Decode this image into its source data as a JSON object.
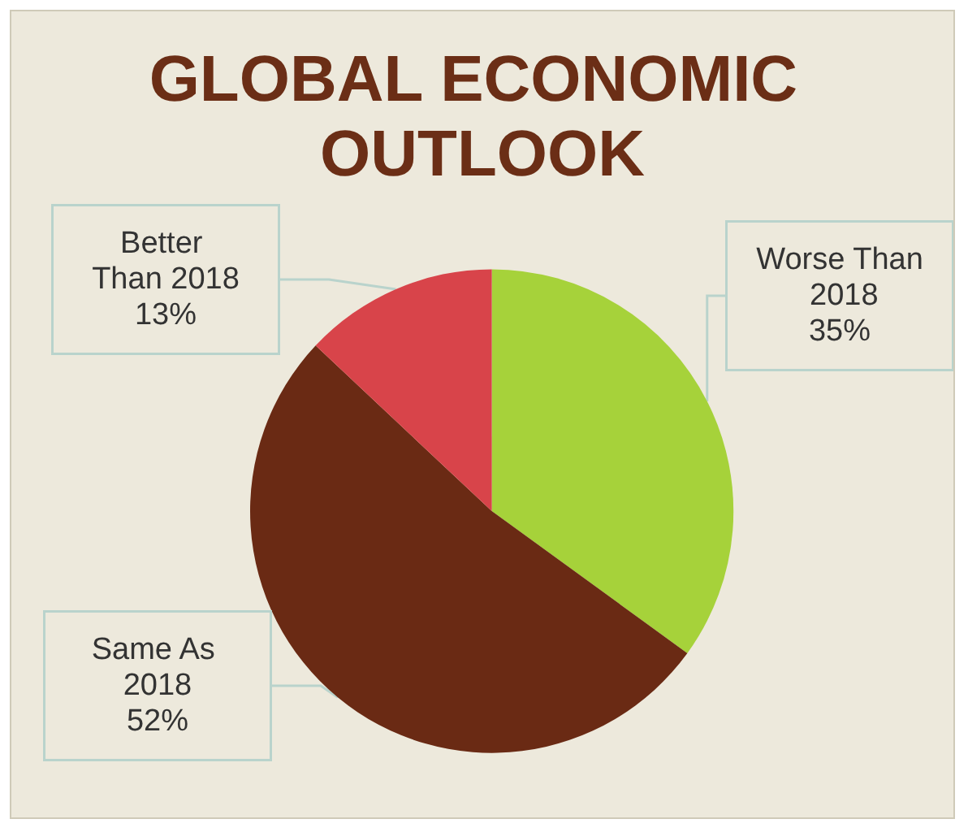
{
  "chart_data": {
    "type": "pie",
    "title": "GLOBAL ECONOMIC OUTLOOK",
    "categories": [
      "Worse Than 2018",
      "Same As 2018",
      "Better Than 2018"
    ],
    "values": [
      35,
      52,
      13
    ],
    "value_labels": [
      "35%",
      "52%",
      "13%"
    ],
    "colors": [
      "#a6d23a",
      "#6a2a14",
      "#d8444a"
    ],
    "legend": false
  }
}
